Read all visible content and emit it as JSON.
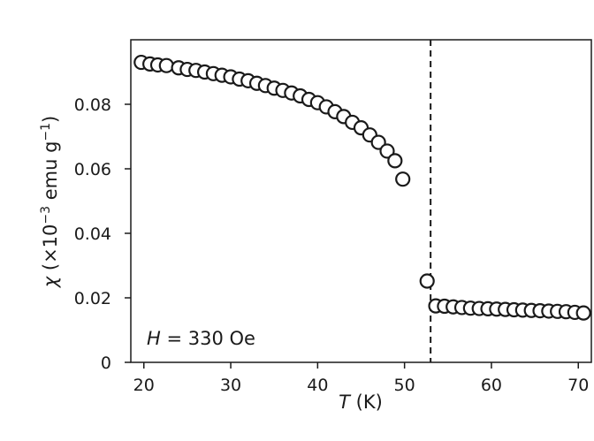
{
  "chart_data": {
    "type": "scatter",
    "xlabel": {
      "var": "T",
      "unit": " (K)"
    },
    "ylabel": {
      "var": "χ",
      "pre": " (×10",
      "exp1": "−3",
      "mid": " emu g",
      "exp2": "−1",
      "post": ")"
    },
    "xlim": [
      18.5,
      71.5
    ],
    "ylim": [
      0,
      0.1
    ],
    "xticks": [
      20,
      30,
      40,
      50,
      60,
      70
    ],
    "xtick_labels": [
      "20",
      "30",
      "40",
      "50",
      "60",
      "70"
    ],
    "yticks": [
      0,
      0.02,
      0.04,
      0.06,
      0.08
    ],
    "ytick_labels": [
      "0",
      "0.02",
      "0.04",
      "0.06",
      "0.08"
    ],
    "annotation": {
      "var": "H",
      "text": " = 330 Oe"
    },
    "vline_x": 53,
    "grid": false,
    "marker": "open-circle",
    "points": [
      {
        "x": 19.7,
        "y": 0.093
      },
      {
        "x": 20.7,
        "y": 0.0925
      },
      {
        "x": 21.6,
        "y": 0.0922
      },
      {
        "x": 22.6,
        "y": 0.092
      },
      {
        "x": 24.0,
        "y": 0.0913
      },
      {
        "x": 25.0,
        "y": 0.0908
      },
      {
        "x": 26.0,
        "y": 0.0905
      },
      {
        "x": 27.0,
        "y": 0.09
      },
      {
        "x": 28.0,
        "y": 0.0895
      },
      {
        "x": 29.0,
        "y": 0.089
      },
      {
        "x": 30.0,
        "y": 0.0885
      },
      {
        "x": 31.0,
        "y": 0.0878
      },
      {
        "x": 32.0,
        "y": 0.0873
      },
      {
        "x": 33.0,
        "y": 0.0865
      },
      {
        "x": 34.0,
        "y": 0.0858
      },
      {
        "x": 35.0,
        "y": 0.085
      },
      {
        "x": 36.0,
        "y": 0.0843
      },
      {
        "x": 37.0,
        "y": 0.0835
      },
      {
        "x": 38.0,
        "y": 0.0826
      },
      {
        "x": 39.0,
        "y": 0.0815
      },
      {
        "x": 40.0,
        "y": 0.0805
      },
      {
        "x": 41.0,
        "y": 0.0792
      },
      {
        "x": 42.0,
        "y": 0.0777
      },
      {
        "x": 43.0,
        "y": 0.0762
      },
      {
        "x": 44.0,
        "y": 0.0744
      },
      {
        "x": 45.0,
        "y": 0.0727
      },
      {
        "x": 46.0,
        "y": 0.0705
      },
      {
        "x": 47.0,
        "y": 0.0682
      },
      {
        "x": 48.0,
        "y": 0.0655
      },
      {
        "x": 48.9,
        "y": 0.0625
      },
      {
        "x": 49.8,
        "y": 0.0568
      },
      {
        "x": 52.6,
        "y": 0.0252
      },
      {
        "x": 53.6,
        "y": 0.0175
      },
      {
        "x": 54.6,
        "y": 0.0174
      },
      {
        "x": 55.6,
        "y": 0.0172
      },
      {
        "x": 56.6,
        "y": 0.017
      },
      {
        "x": 57.6,
        "y": 0.0168
      },
      {
        "x": 58.6,
        "y": 0.0167
      },
      {
        "x": 59.6,
        "y": 0.0166
      },
      {
        "x": 60.6,
        "y": 0.0165
      },
      {
        "x": 61.6,
        "y": 0.0164
      },
      {
        "x": 62.6,
        "y": 0.0163
      },
      {
        "x": 63.6,
        "y": 0.0162
      },
      {
        "x": 64.6,
        "y": 0.0161
      },
      {
        "x": 65.6,
        "y": 0.016
      },
      {
        "x": 66.6,
        "y": 0.0159
      },
      {
        "x": 67.6,
        "y": 0.0158
      },
      {
        "x": 68.6,
        "y": 0.0157
      },
      {
        "x": 69.6,
        "y": 0.0155
      },
      {
        "x": 70.6,
        "y": 0.0153
      }
    ]
  }
}
